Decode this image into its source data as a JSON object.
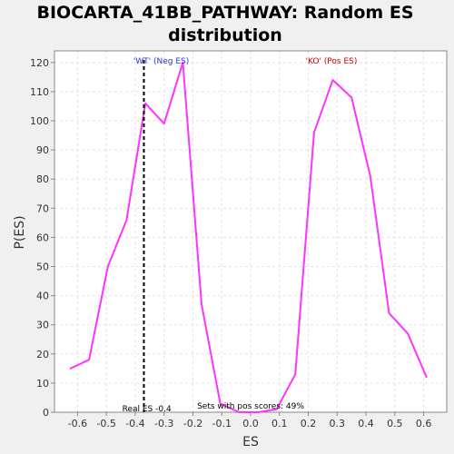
{
  "colors": {
    "background": "#f0f0f0",
    "plot_background": "#ffffff",
    "grid": "#e2e2e2",
    "axis": "#888888",
    "series_line": "#ff33ff",
    "real_es_line": "#000000",
    "neg_label": "#3333cc",
    "pos_label": "#cc0000",
    "text": "#000000"
  },
  "chart_data": {
    "type": "line",
    "title_lines": [
      "BIOCARTA_41BB_PATHWAY: Random ES",
      "distribution"
    ],
    "xlabel": "ES",
    "ylabel": "P(ES)",
    "xlim": [
      -0.68,
      0.68
    ],
    "ylim": [
      0,
      124
    ],
    "grid": true,
    "x_ticks": [
      -0.6,
      -0.5,
      -0.4,
      -0.3,
      -0.2,
      -0.1,
      0.0,
      0.1,
      0.2,
      0.3,
      0.4,
      0.5,
      0.6
    ],
    "x_tick_labels": [
      "-0.6",
      "-0.5",
      "-0.4",
      "-0.3",
      "-0.2",
      "-0.1",
      "0.0",
      "0.1",
      "0.2",
      "0.3",
      "0.4",
      "0.5",
      "0.6"
    ],
    "y_ticks": [
      0,
      10,
      20,
      30,
      40,
      50,
      60,
      70,
      80,
      90,
      100,
      110,
      120
    ],
    "y_tick_labels": [
      "0",
      "10",
      "20",
      "30",
      "40",
      "50",
      "60",
      "70",
      "80",
      "90",
      "100",
      "110",
      "120"
    ],
    "series": [
      {
        "x": [
          -0.625,
          -0.56,
          -0.495,
          -0.43,
          -0.365,
          -0.3,
          -0.235,
          -0.17,
          -0.105,
          -0.04,
          0.025,
          0.09,
          0.155,
          0.22,
          0.285,
          0.35,
          0.415,
          0.48,
          0.545,
          0.61
        ],
        "y": [
          15,
          18,
          50,
          66,
          106,
          99,
          120,
          37,
          3,
          0,
          0,
          1,
          13,
          96,
          114,
          108,
          81,
          34,
          27,
          12
        ]
      }
    ],
    "real_es": -0.37,
    "annotations": {
      "neg_label": "'WT' (Neg ES)",
      "pos_label": "'KO' (Pos ES)",
      "real_es_label": "Real ES -0.4",
      "pos_score_label": "Sets with pos scores: 49%"
    }
  }
}
